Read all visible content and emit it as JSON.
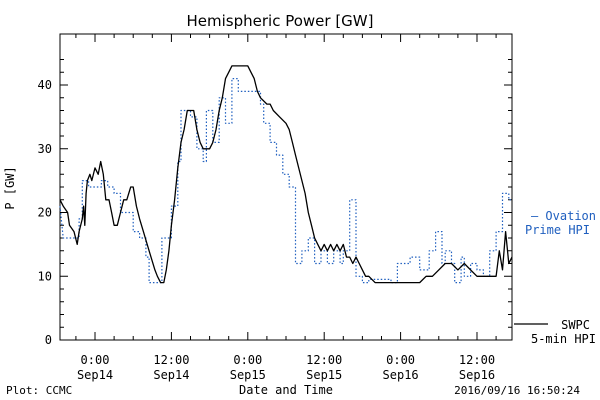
{
  "chart_data": {
    "type": "line",
    "title": "Hemispheric Power [GW]",
    "xlabel": "Date and Time",
    "ylabel": "P [GW]",
    "ylim": [
      0,
      48
    ],
    "xlim_hours": [
      -5.5,
      65.5
    ],
    "y_ticks": [
      0,
      10,
      20,
      30,
      40
    ],
    "x_ticks": [
      {
        "t": 0,
        "label_top": "0:00",
        "label_bottom": "Sep14"
      },
      {
        "t": 12,
        "label_top": "12:00",
        "label_bottom": "Sep14"
      },
      {
        "t": 24,
        "label_top": "0:00",
        "label_bottom": "Sep15"
      },
      {
        "t": 36,
        "label_top": "12:00",
        "label_bottom": "Sep15"
      },
      {
        "t": 48,
        "label_top": "0:00",
        "label_bottom": "Sep16"
      },
      {
        "t": 60,
        "label_top": "12:00",
        "label_bottom": "Sep16"
      }
    ],
    "series": [
      {
        "name_lines": [
          "SWPC",
          "5-min HPI"
        ],
        "style": "solid",
        "color": "#000000",
        "points": [
          [
            -5.5,
            22
          ],
          [
            -5,
            21
          ],
          [
            -4.3,
            20
          ],
          [
            -4,
            18
          ],
          [
            -3.3,
            17
          ],
          [
            -2.8,
            15
          ],
          [
            -2.5,
            17
          ],
          [
            -2,
            19
          ],
          [
            -1.8,
            21
          ],
          [
            -1.6,
            18
          ],
          [
            -1.4,
            23
          ],
          [
            -1.2,
            25
          ],
          [
            -0.8,
            26
          ],
          [
            -0.5,
            25
          ],
          [
            0,
            27
          ],
          [
            0.5,
            26
          ],
          [
            0.9,
            28
          ],
          [
            1.3,
            26
          ],
          [
            1.7,
            22
          ],
          [
            2.2,
            22
          ],
          [
            2.6,
            20
          ],
          [
            3,
            18
          ],
          [
            3.5,
            18
          ],
          [
            4,
            20
          ],
          [
            4.5,
            22
          ],
          [
            5,
            22
          ],
          [
            5.6,
            24
          ],
          [
            6,
            24
          ],
          [
            6.5,
            21
          ],
          [
            7,
            19
          ],
          [
            7.6,
            17
          ],
          [
            8.2,
            15
          ],
          [
            8.8,
            13
          ],
          [
            9.4,
            11
          ],
          [
            9.8,
            10
          ],
          [
            10.3,
            9
          ],
          [
            10.8,
            9
          ],
          [
            11.2,
            11
          ],
          [
            11.6,
            14
          ],
          [
            12,
            18
          ],
          [
            12.5,
            22
          ],
          [
            13,
            27
          ],
          [
            13.5,
            31
          ],
          [
            14,
            33
          ],
          [
            14.5,
            36
          ],
          [
            15,
            36
          ],
          [
            15.5,
            36
          ],
          [
            16,
            33
          ],
          [
            16.5,
            31
          ],
          [
            17,
            30
          ],
          [
            17.5,
            30
          ],
          [
            18,
            30
          ],
          [
            18.5,
            31
          ],
          [
            19,
            33
          ],
          [
            19.5,
            36
          ],
          [
            20,
            38
          ],
          [
            20.5,
            41
          ],
          [
            21,
            42
          ],
          [
            21.5,
            43
          ],
          [
            22,
            43
          ],
          [
            23,
            43
          ],
          [
            24,
            43
          ],
          [
            24.5,
            42
          ],
          [
            25,
            41
          ],
          [
            25.5,
            39
          ],
          [
            26,
            38
          ],
          [
            27,
            37
          ],
          [
            27.5,
            37
          ],
          [
            28,
            36
          ],
          [
            29,
            35
          ],
          [
            30,
            34
          ],
          [
            30.5,
            33
          ],
          [
            31,
            31
          ],
          [
            31.5,
            29
          ],
          [
            32,
            27
          ],
          [
            32.5,
            25
          ],
          [
            33,
            23
          ],
          [
            33.5,
            20
          ],
          [
            34,
            18
          ],
          [
            34.5,
            16
          ],
          [
            35,
            15
          ],
          [
            35.5,
            14
          ],
          [
            36,
            15
          ],
          [
            36.5,
            14
          ],
          [
            37,
            15
          ],
          [
            37.5,
            14
          ],
          [
            38,
            15
          ],
          [
            38.5,
            14
          ],
          [
            39,
            15
          ],
          [
            39.5,
            13
          ],
          [
            40,
            13
          ],
          [
            40.5,
            12
          ],
          [
            41,
            13
          ],
          [
            41.5,
            12
          ],
          [
            42,
            11
          ],
          [
            42.5,
            10
          ],
          [
            43,
            10
          ],
          [
            44,
            9
          ],
          [
            45,
            9
          ],
          [
            46,
            9
          ],
          [
            47,
            9
          ],
          [
            48,
            9
          ],
          [
            49,
            9
          ],
          [
            50,
            9
          ],
          [
            51,
            9
          ],
          [
            52,
            10
          ],
          [
            53,
            10
          ],
          [
            54,
            11
          ],
          [
            55,
            12
          ],
          [
            56,
            12
          ],
          [
            57,
            11
          ],
          [
            58,
            12
          ],
          [
            59,
            11
          ],
          [
            60,
            10
          ],
          [
            61,
            10
          ],
          [
            62,
            10
          ],
          [
            63,
            10
          ],
          [
            63.5,
            14
          ],
          [
            64,
            11
          ],
          [
            64.5,
            17
          ],
          [
            65,
            12
          ],
          [
            65.5,
            13
          ]
        ]
      },
      {
        "name_lines": [
          "— Ovation",
          "Prime HPI"
        ],
        "style": "dotted",
        "color": "#1f5fbf",
        "points": [
          [
            -5.5,
            21
          ],
          [
            -5,
            16
          ],
          [
            -2.5,
            16
          ],
          [
            -2.5,
            19
          ],
          [
            -2,
            19
          ],
          [
            -2,
            25
          ],
          [
            -1,
            25
          ],
          [
            -1,
            24
          ],
          [
            1,
            24
          ],
          [
            1,
            25
          ],
          [
            2,
            25
          ],
          [
            2,
            24
          ],
          [
            3,
            24
          ],
          [
            3,
            23
          ],
          [
            4,
            23
          ],
          [
            4,
            20
          ],
          [
            6,
            20
          ],
          [
            6,
            17
          ],
          [
            7,
            17
          ],
          [
            7,
            16
          ],
          [
            8,
            16
          ],
          [
            8,
            13
          ],
          [
            8.5,
            13
          ],
          [
            8.5,
            9
          ],
          [
            10.5,
            9
          ],
          [
            10.5,
            16
          ],
          [
            12,
            16
          ],
          [
            12,
            21
          ],
          [
            13,
            21
          ],
          [
            13,
            28
          ],
          [
            13.5,
            28
          ],
          [
            13.5,
            36
          ],
          [
            15,
            36
          ],
          [
            15,
            35
          ],
          [
            16,
            35
          ],
          [
            16,
            30
          ],
          [
            17,
            30
          ],
          [
            17,
            28
          ],
          [
            17.5,
            28
          ],
          [
            17.5,
            36
          ],
          [
            18.5,
            36
          ],
          [
            18.5,
            31
          ],
          [
            19.5,
            31
          ],
          [
            19.5,
            38
          ],
          [
            20.5,
            38
          ],
          [
            20.5,
            34
          ],
          [
            21.5,
            34
          ],
          [
            21.5,
            41
          ],
          [
            22.5,
            41
          ],
          [
            22.5,
            39
          ],
          [
            26,
            39
          ],
          [
            26,
            37
          ],
          [
            26.5,
            37
          ],
          [
            26.5,
            34
          ],
          [
            27.5,
            34
          ],
          [
            27.5,
            31
          ],
          [
            28.5,
            31
          ],
          [
            28.5,
            29
          ],
          [
            29.5,
            29
          ],
          [
            29.5,
            26
          ],
          [
            30.5,
            26
          ],
          [
            30.5,
            24
          ],
          [
            31.5,
            24
          ],
          [
            31.5,
            12
          ],
          [
            32.5,
            12
          ],
          [
            32.5,
            14
          ],
          [
            33.5,
            14
          ],
          [
            33.5,
            16
          ],
          [
            34.5,
            16
          ],
          [
            34.5,
            12
          ],
          [
            35.5,
            12
          ],
          [
            35.5,
            14
          ],
          [
            36.5,
            14
          ],
          [
            36.5,
            12
          ],
          [
            37.5,
            12
          ],
          [
            37.5,
            14
          ],
          [
            38.5,
            14
          ],
          [
            38.5,
            12
          ],
          [
            39,
            12
          ],
          [
            39,
            14
          ],
          [
            40,
            14
          ],
          [
            40,
            22
          ],
          [
            41,
            22
          ],
          [
            41,
            10
          ],
          [
            42,
            10
          ],
          [
            42,
            9
          ],
          [
            43,
            9
          ],
          [
            43,
            9.5
          ],
          [
            46.5,
            9.5
          ],
          [
            46.5,
            9
          ],
          [
            47.5,
            9
          ],
          [
            47.5,
            12
          ],
          [
            49.5,
            12
          ],
          [
            49.5,
            13
          ],
          [
            51,
            13
          ],
          [
            51,
            11
          ],
          [
            52.5,
            11
          ],
          [
            52.5,
            14
          ],
          [
            53.5,
            14
          ],
          [
            53.5,
            17
          ],
          [
            54.5,
            17
          ],
          [
            54.5,
            12
          ],
          [
            55,
            12
          ],
          [
            55,
            14
          ],
          [
            56,
            14
          ],
          [
            56,
            12
          ],
          [
            56.5,
            12
          ],
          [
            56.5,
            9
          ],
          [
            57.5,
            9
          ],
          [
            57.5,
            13
          ],
          [
            58,
            13
          ],
          [
            58,
            10
          ],
          [
            59,
            10
          ],
          [
            59,
            12
          ],
          [
            60,
            12
          ],
          [
            60,
            11
          ],
          [
            61,
            11
          ],
          [
            61,
            10
          ],
          [
            62,
            10
          ],
          [
            62,
            14
          ],
          [
            63,
            14
          ],
          [
            63,
            17
          ],
          [
            64,
            17
          ],
          [
            64,
            23
          ],
          [
            65,
            23
          ],
          [
            65,
            22
          ],
          [
            65.5,
            22
          ]
        ]
      }
    ]
  },
  "footer": {
    "left": "Plot: CCMC",
    "right": "2016/09/16 16:50:24"
  }
}
